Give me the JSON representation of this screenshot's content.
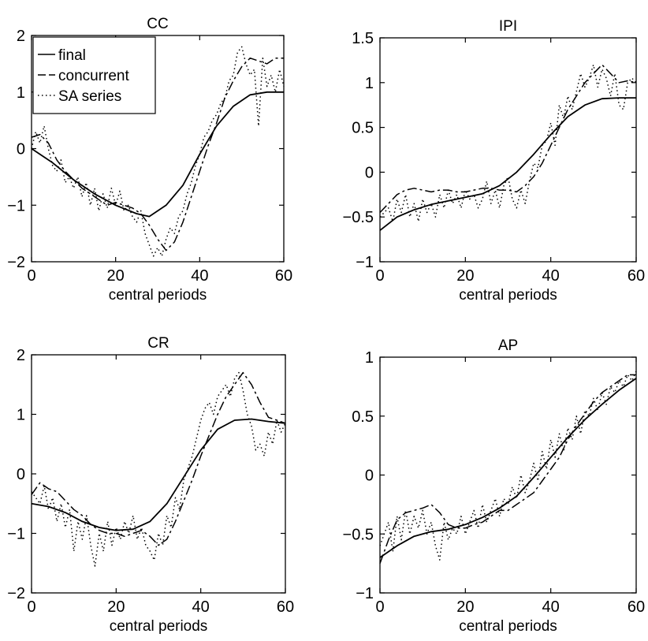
{
  "chart_data": [
    {
      "type": "line",
      "title": "CC",
      "xlabel": "central periods",
      "ylabel": "",
      "xlim": [
        0,
        60
      ],
      "ylim": [
        -2,
        2
      ],
      "xticks": [
        0,
        20,
        40,
        60
      ],
      "yticks": [
        -2,
        -1,
        0,
        1,
        2
      ],
      "legend": {
        "placement": "top-left",
        "entries": [
          "final",
          "concurrent",
          "SA series"
        ]
      },
      "series": [
        {
          "name": "final",
          "style": "solid",
          "x": [
            0,
            5,
            10,
            15,
            20,
            25,
            28,
            32,
            36,
            40,
            44,
            48,
            52,
            56,
            60
          ],
          "y": [
            0.0,
            -0.25,
            -0.55,
            -0.8,
            -1.0,
            -1.15,
            -1.2,
            -1.0,
            -0.65,
            -0.1,
            0.4,
            0.75,
            0.95,
            1.0,
            1.0
          ]
        },
        {
          "name": "concurrent",
          "style": "dashdot",
          "x": [
            0,
            2,
            4,
            6,
            8,
            10,
            12,
            14,
            16,
            18,
            20,
            22,
            24,
            26,
            28,
            30,
            32,
            34,
            36,
            38,
            40,
            42,
            44,
            46,
            48,
            50,
            52,
            54,
            56,
            58,
            60
          ],
          "y": [
            0.2,
            0.25,
            0.1,
            -0.2,
            -0.4,
            -0.55,
            -0.7,
            -0.8,
            -0.9,
            -1.0,
            -0.95,
            -1.0,
            -1.05,
            -1.15,
            -1.35,
            -1.6,
            -1.8,
            -1.65,
            -1.3,
            -0.85,
            -0.4,
            0.05,
            0.45,
            0.9,
            1.2,
            1.45,
            1.6,
            1.55,
            1.5,
            1.6,
            1.6
          ]
        },
        {
          "name": "SA series",
          "style": "dotted",
          "x": [
            0,
            1,
            2,
            3,
            4,
            5,
            6,
            7,
            8,
            9,
            10,
            11,
            12,
            13,
            14,
            15,
            16,
            17,
            18,
            19,
            20,
            21,
            22,
            23,
            24,
            25,
            26,
            27,
            28,
            29,
            30,
            31,
            32,
            33,
            34,
            35,
            36,
            37,
            38,
            39,
            40,
            41,
            42,
            43,
            44,
            45,
            46,
            47,
            48,
            49,
            50,
            51,
            52,
            53,
            54,
            55,
            56,
            57,
            58,
            59,
            60
          ],
          "y": [
            0.0,
            0.3,
            0.1,
            0.4,
            0.0,
            -0.3,
            -0.4,
            -0.2,
            -0.6,
            -0.5,
            -0.7,
            -0.5,
            -0.85,
            -0.6,
            -1.0,
            -0.7,
            -1.1,
            -0.8,
            -1.05,
            -0.7,
            -1.0,
            -0.75,
            -1.1,
            -1.0,
            -1.2,
            -1.3,
            -1.1,
            -1.5,
            -1.7,
            -1.9,
            -1.75,
            -1.9,
            -1.6,
            -1.4,
            -1.5,
            -1.2,
            -1.1,
            -0.8,
            -0.6,
            -0.3,
            -0.1,
            0.2,
            0.3,
            0.5,
            0.6,
            0.8,
            0.9,
            1.2,
            1.3,
            1.7,
            1.8,
            1.5,
            1.3,
            1.4,
            0.4,
            1.6,
            1.1,
            1.3,
            1.0,
            1.4,
            1.1
          ]
        }
      ]
    },
    {
      "type": "line",
      "title": "IPI",
      "xlabel": "central periods",
      "ylabel": "",
      "xlim": [
        0,
        60
      ],
      "ylim": [
        -1,
        1.5
      ],
      "xticks": [
        0,
        20,
        40,
        60
      ],
      "yticks": [
        -1,
        -0.5,
        0,
        0.5,
        1,
        1.5
      ],
      "series": [
        {
          "name": "final",
          "style": "solid",
          "x": [
            0,
            4,
            8,
            12,
            16,
            20,
            24,
            28,
            32,
            36,
            40,
            44,
            48,
            52,
            56,
            60
          ],
          "y": [
            -0.65,
            -0.5,
            -0.42,
            -0.36,
            -0.32,
            -0.28,
            -0.24,
            -0.15,
            0.0,
            0.2,
            0.42,
            0.62,
            0.75,
            0.82,
            0.83,
            0.83
          ]
        },
        {
          "name": "concurrent",
          "style": "dashdot",
          "x": [
            0,
            2,
            4,
            6,
            8,
            10,
            12,
            14,
            16,
            18,
            20,
            22,
            24,
            26,
            28,
            30,
            32,
            34,
            36,
            38,
            40,
            42,
            44,
            46,
            48,
            50,
            52,
            54,
            56,
            58,
            60
          ],
          "y": [
            -0.45,
            -0.35,
            -0.25,
            -0.2,
            -0.18,
            -0.2,
            -0.22,
            -0.2,
            -0.2,
            -0.22,
            -0.22,
            -0.2,
            -0.18,
            -0.18,
            -0.2,
            -0.2,
            -0.22,
            -0.15,
            -0.05,
            0.1,
            0.3,
            0.5,
            0.7,
            0.85,
            1.0,
            1.1,
            1.2,
            1.1,
            1.0,
            1.02,
            1.0
          ]
        },
        {
          "name": "SA series",
          "style": "dotted",
          "x": [
            0,
            2,
            3,
            4,
            5,
            6,
            7,
            8,
            9,
            10,
            11,
            12,
            13,
            14,
            15,
            16,
            17,
            18,
            19,
            20,
            21,
            22,
            23,
            24,
            25,
            26,
            27,
            28,
            29,
            30,
            31,
            32,
            33,
            34,
            35,
            36,
            37,
            38,
            39,
            40,
            41,
            42,
            43,
            44,
            45,
            46,
            47,
            48,
            49,
            50,
            51,
            52,
            53,
            54,
            55,
            56,
            57,
            58,
            59,
            60
          ],
          "y": [
            -0.5,
            -0.4,
            -0.55,
            -0.3,
            -0.45,
            -0.25,
            -0.5,
            -0.35,
            -0.55,
            -0.3,
            -0.45,
            -0.35,
            -0.5,
            -0.25,
            -0.4,
            -0.2,
            -0.35,
            -0.25,
            -0.4,
            -0.2,
            -0.3,
            -0.25,
            -0.4,
            -0.3,
            -0.1,
            -0.35,
            -0.2,
            -0.4,
            -0.15,
            -0.05,
            -0.3,
            -0.4,
            -0.2,
            -0.35,
            -0.1,
            0.1,
            0.05,
            0.3,
            0.35,
            0.55,
            0.3,
            0.75,
            0.6,
            0.85,
            0.7,
            0.9,
            1.1,
            0.95,
            1.05,
            1.2,
            0.95,
            1.15,
            1.05,
            0.85,
            1.1,
            0.75,
            0.7,
            1.0,
            1.05,
            1.0
          ]
        }
      ]
    },
    {
      "type": "line",
      "title": "CR",
      "xlabel": "central periods",
      "ylabel": "",
      "xlim": [
        0,
        60
      ],
      "ylim": [
        -2,
        2
      ],
      "xticks": [
        0,
        20,
        40,
        60
      ],
      "yticks": [
        -2,
        -1,
        0,
        1,
        2
      ],
      "series": [
        {
          "name": "final",
          "style": "solid",
          "x": [
            0,
            4,
            8,
            12,
            16,
            20,
            24,
            28,
            32,
            36,
            40,
            44,
            48,
            52,
            56,
            60
          ],
          "y": [
            -0.5,
            -0.55,
            -0.65,
            -0.8,
            -0.9,
            -0.95,
            -0.93,
            -0.8,
            -0.5,
            -0.05,
            0.4,
            0.75,
            0.9,
            0.92,
            0.88,
            0.85
          ]
        },
        {
          "name": "concurrent",
          "style": "dashdot",
          "x": [
            0,
            2,
            4,
            6,
            8,
            10,
            12,
            14,
            16,
            18,
            20,
            22,
            24,
            26,
            28,
            30,
            32,
            34,
            36,
            38,
            40,
            42,
            44,
            46,
            48,
            50,
            52,
            54,
            56,
            58,
            60
          ],
          "y": [
            -0.35,
            -0.15,
            -0.25,
            -0.3,
            -0.45,
            -0.6,
            -0.7,
            -0.85,
            -0.95,
            -1.0,
            -1.0,
            -1.05,
            -1.0,
            -0.95,
            -1.05,
            -1.2,
            -1.1,
            -0.8,
            -0.45,
            -0.1,
            0.3,
            0.65,
            1.0,
            1.3,
            1.5,
            1.7,
            1.5,
            1.2,
            0.95,
            0.9,
            0.85
          ]
        },
        {
          "name": "SA series",
          "style": "dotted",
          "x": [
            0,
            2,
            3,
            4,
            5,
            6,
            7,
            8,
            9,
            10,
            11,
            12,
            13,
            14,
            15,
            16,
            17,
            18,
            19,
            20,
            21,
            22,
            23,
            24,
            25,
            26,
            27,
            28,
            29,
            30,
            31,
            32,
            33,
            34,
            35,
            36,
            37,
            38,
            39,
            40,
            41,
            42,
            43,
            44,
            45,
            46,
            47,
            48,
            49,
            50,
            51,
            52,
            53,
            54,
            55,
            56,
            57,
            58,
            59,
            60
          ],
          "y": [
            -0.3,
            -0.5,
            -0.2,
            -0.6,
            -0.4,
            -0.8,
            -0.5,
            -0.9,
            -0.6,
            -1.3,
            -0.8,
            -1.1,
            -0.7,
            -1.2,
            -1.55,
            -1.0,
            -1.3,
            -0.8,
            -1.2,
            -0.9,
            -1.1,
            -0.8,
            -1.0,
            -0.7,
            -1.1,
            -0.9,
            -1.2,
            -1.3,
            -1.45,
            -1.0,
            -1.2,
            -0.7,
            -0.9,
            -0.4,
            -0.6,
            -0.1,
            0.1,
            0.3,
            0.6,
            0.9,
            1.1,
            1.2,
            1.0,
            1.3,
            1.4,
            1.5,
            1.3,
            1.6,
            1.7,
            1.4,
            1.0,
            0.8,
            0.4,
            0.5,
            0.3,
            0.7,
            0.5,
            0.9,
            0.7,
            0.85
          ]
        }
      ]
    },
    {
      "type": "line",
      "title": "AP",
      "xlabel": "central periods",
      "ylabel": "",
      "xlim": [
        0,
        60
      ],
      "ylim": [
        -1,
        1
      ],
      "xticks": [
        0,
        20,
        40,
        60
      ],
      "yticks": [
        -1,
        -0.5,
        0,
        0.5,
        1
      ],
      "series": [
        {
          "name": "final",
          "style": "solid",
          "x": [
            0,
            4,
            8,
            12,
            16,
            20,
            24,
            28,
            32,
            36,
            40,
            44,
            48,
            52,
            56,
            60
          ],
          "y": [
            -0.7,
            -0.6,
            -0.52,
            -0.48,
            -0.46,
            -0.42,
            -0.36,
            -0.28,
            -0.18,
            -0.02,
            0.15,
            0.32,
            0.47,
            0.6,
            0.72,
            0.82
          ]
        },
        {
          "name": "concurrent",
          "style": "dashdot",
          "x": [
            0,
            2,
            4,
            6,
            8,
            10,
            12,
            14,
            16,
            18,
            20,
            22,
            24,
            26,
            28,
            30,
            32,
            34,
            36,
            38,
            40,
            42,
            44,
            46,
            48,
            50,
            52,
            54,
            56,
            58,
            60
          ],
          "y": [
            -0.75,
            -0.55,
            -0.38,
            -0.32,
            -0.3,
            -0.28,
            -0.25,
            -0.32,
            -0.42,
            -0.45,
            -0.45,
            -0.42,
            -0.4,
            -0.35,
            -0.3,
            -0.3,
            -0.25,
            -0.2,
            -0.15,
            -0.05,
            0.05,
            0.15,
            0.3,
            0.42,
            0.52,
            0.62,
            0.7,
            0.75,
            0.8,
            0.85,
            0.85
          ]
        },
        {
          "name": "SA series",
          "style": "dotted",
          "x": [
            0,
            2,
            3,
            4,
            5,
            6,
            7,
            8,
            9,
            10,
            11,
            12,
            13,
            14,
            15,
            16,
            17,
            18,
            19,
            20,
            21,
            22,
            23,
            24,
            25,
            26,
            27,
            28,
            29,
            30,
            31,
            32,
            33,
            34,
            35,
            36,
            37,
            38,
            39,
            40,
            41,
            42,
            43,
            44,
            45,
            46,
            47,
            48,
            49,
            50,
            51,
            52,
            53,
            54,
            55,
            56,
            57,
            58,
            59,
            60
          ],
          "y": [
            -0.6,
            -0.4,
            -0.65,
            -0.35,
            -0.55,
            -0.3,
            -0.5,
            -0.35,
            -0.45,
            -0.3,
            -0.5,
            -0.4,
            -0.6,
            -0.72,
            -0.4,
            -0.55,
            -0.45,
            -0.5,
            -0.35,
            -0.5,
            -0.4,
            -0.3,
            -0.45,
            -0.25,
            -0.4,
            -0.3,
            -0.2,
            -0.35,
            -0.2,
            -0.25,
            -0.1,
            -0.2,
            0.0,
            -0.15,
            -0.05,
            0.1,
            -0.05,
            0.2,
            0.05,
            0.3,
            0.15,
            0.35,
            0.2,
            0.4,
            0.3,
            0.5,
            0.35,
            0.55,
            0.5,
            0.65,
            0.55,
            0.7,
            0.6,
            0.75,
            0.7,
            0.8,
            0.75,
            0.85,
            0.8,
            0.88
          ]
        }
      ]
    }
  ]
}
